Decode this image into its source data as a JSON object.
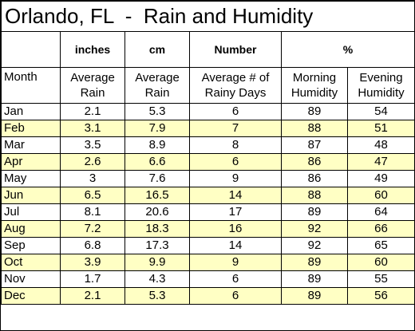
{
  "title": "Orlando, FL  -  Rain and Humidity",
  "units": {
    "month": "",
    "avg_rain_in": "inches",
    "avg_rain_cm": "cm",
    "rainy_days": "Number",
    "humidity": "%"
  },
  "columns": {
    "month": "Month",
    "avg_rain_in": "Average Rain",
    "avg_rain_cm": "Average Rain",
    "rainy_days": "Average # of Rainy Days",
    "morning_humidity": "Morning Humidity",
    "evening_humidity": "Evening Humidity"
  },
  "colors": {
    "alt_row_background": "#ffffc4",
    "border": "#000000"
  },
  "chart_data": {
    "type": "table",
    "title": "Orlando, FL  -  Rain and Humidity",
    "columns": [
      "Month",
      "Average Rain",
      "Average Rain",
      "Average # of Rainy Days",
      "Morning Humidity",
      "Evening Humidity"
    ],
    "units": [
      "",
      "inches",
      "cm",
      "Number",
      "%",
      ""
    ],
    "rows": [
      [
        "Jan",
        "2.1",
        "5.3",
        "6",
        "89",
        "54"
      ],
      [
        "Feb",
        "3.1",
        "7.9",
        "7",
        "88",
        "51"
      ],
      [
        "Mar",
        "3.5",
        "8.9",
        "8",
        "87",
        "48"
      ],
      [
        "Apr",
        "2.6",
        "6.6",
        "6",
        "86",
        "47"
      ],
      [
        "May",
        "3",
        "7.6",
        "9",
        "86",
        "49"
      ],
      [
        "Jun",
        "6.5",
        "16.5",
        "14",
        "88",
        "60"
      ],
      [
        "Jul",
        "8.1",
        "20.6",
        "17",
        "89",
        "64"
      ],
      [
        "Aug",
        "7.2",
        "18.3",
        "16",
        "92",
        "66"
      ],
      [
        "Sep",
        "6.8",
        "17.3",
        "14",
        "92",
        "65"
      ],
      [
        "Oct",
        "3.9",
        "9.9",
        "9",
        "89",
        "60"
      ],
      [
        "Nov",
        "1.7",
        "4.3",
        "6",
        "89",
        "55"
      ],
      [
        "Dec",
        "2.1",
        "5.3",
        "6",
        "89",
        "56"
      ]
    ]
  }
}
